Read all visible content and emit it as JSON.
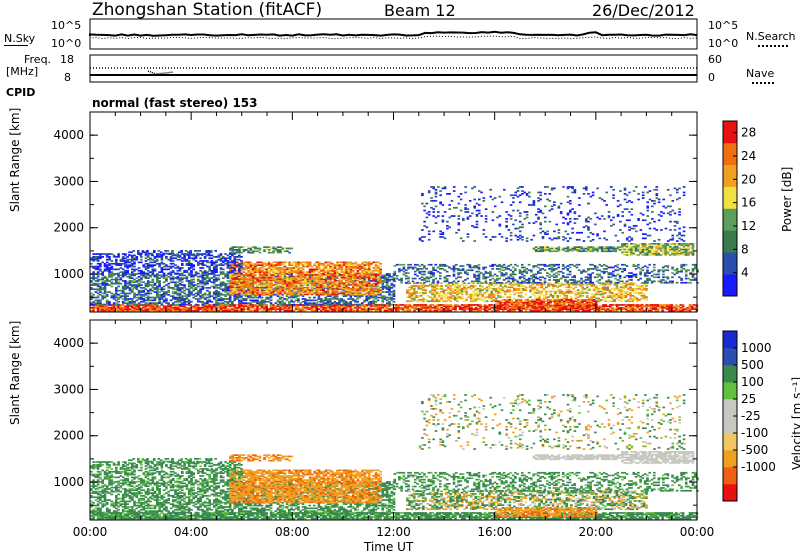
{
  "header": {
    "station": "Zhongshan Station (fitACF)",
    "beam": "Beam 12",
    "date": "26/Dec/2012"
  },
  "summary_panels": {
    "nsky_label": "N.Sky",
    "nsearch_label": "N.Search",
    "freq_label_line1": "Freq.",
    "freq_label_line2": "[MHz]",
    "nave_label": "Nave",
    "cpid_label": "CPID",
    "cpid_value": "normal (fast stereo) 153",
    "noise_left_ticks": [
      "10^5",
      "10^0"
    ],
    "noise_right_ticks": [
      "10^5",
      "10^0"
    ],
    "freq_left_ticks": [
      "18",
      "8"
    ],
    "freq_right_ticks": [
      "60",
      "0"
    ]
  },
  "colors": {
    "power_scale": [
      "#1a1aff",
      "#2a4fb0",
      "#3b7a4a",
      "#5aa05a",
      "#f0e040",
      "#f0a020",
      "#f07010",
      "#e81010"
    ],
    "velocity_scale": [
      "#e81010",
      "#f06010",
      "#f0a020",
      "#f0c860",
      "#c8c8c0",
      "#c8c8c0",
      "#60c040",
      "#3a8a50",
      "#2a4fb0",
      "#1a2ad0"
    ],
    "ground_scatter": "#c8c8c0"
  },
  "chart_data": [
    {
      "type": "heatmap",
      "name": "power",
      "ylabel": "Slant Range [km]",
      "yticks": [
        "1000",
        "2000",
        "3000",
        "4000"
      ],
      "ylim": [
        180,
        4500
      ],
      "colorbar_label": "Power [dB]",
      "colorbar_ticks": [
        "4",
        "8",
        "12",
        "16",
        "20",
        "24",
        "28"
      ],
      "colorbar_range": [
        0,
        30
      ]
    },
    {
      "type": "heatmap",
      "name": "velocity",
      "ylabel": "Slant Range [km]",
      "yticks": [
        "1000",
        "2000",
        "3000",
        "4000"
      ],
      "ylim": [
        180,
        4500
      ],
      "colorbar_label": "Velocity [m s⁻¹]",
      "colorbar_ticks": [
        "1000",
        "500",
        "100",
        "25",
        "-25",
        "-100",
        "-500",
        "-1000"
      ],
      "xlabel": "Time UT",
      "xticks": [
        "00:00",
        "04:00",
        "08:00",
        "12:00",
        "16:00",
        "20:00",
        "00:00"
      ],
      "xlim": [
        0,
        24
      ]
    }
  ]
}
